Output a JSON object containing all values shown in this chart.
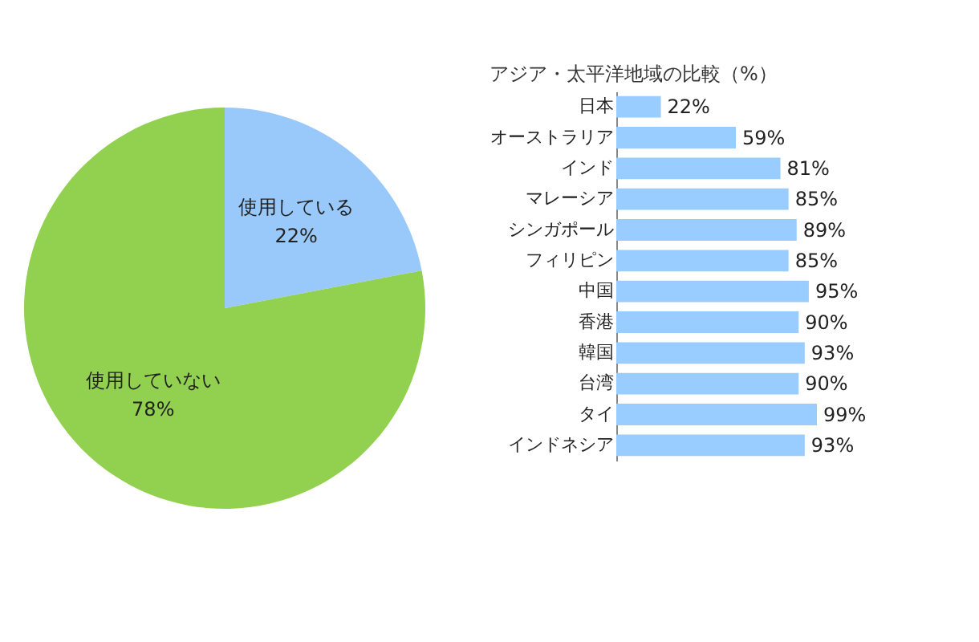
{
  "chart_data": [
    {
      "type": "pie",
      "categories": [
        "使用している",
        "使用していない"
      ],
      "values": [
        22,
        78
      ],
      "colors": [
        "#99c9fa",
        "#92d050"
      ],
      "value_labels": [
        "22%",
        "78%"
      ],
      "legend": false
    },
    {
      "type": "bar",
      "orientation": "horizontal",
      "title": "アジア・太平洋地域の比較（%）",
      "categories": [
        "日本",
        "オーストラリア",
        "インド",
        "マレーシア",
        "シンガポール",
        "フィリピン",
        "中国",
        "香港",
        "韓国",
        "台湾",
        "タイ",
        "インドネシア"
      ],
      "values": [
        22,
        59,
        81,
        85,
        89,
        85,
        95,
        90,
        93,
        90,
        99,
        93
      ],
      "color": "#99ccff",
      "value_labels": [
        "22%",
        "59%",
        "81%",
        "85%",
        "89%",
        "85%",
        "95%",
        "90%",
        "93%",
        "90%",
        "99%",
        "93%"
      ],
      "grid": false,
      "tick_labels": "y"
    }
  ]
}
